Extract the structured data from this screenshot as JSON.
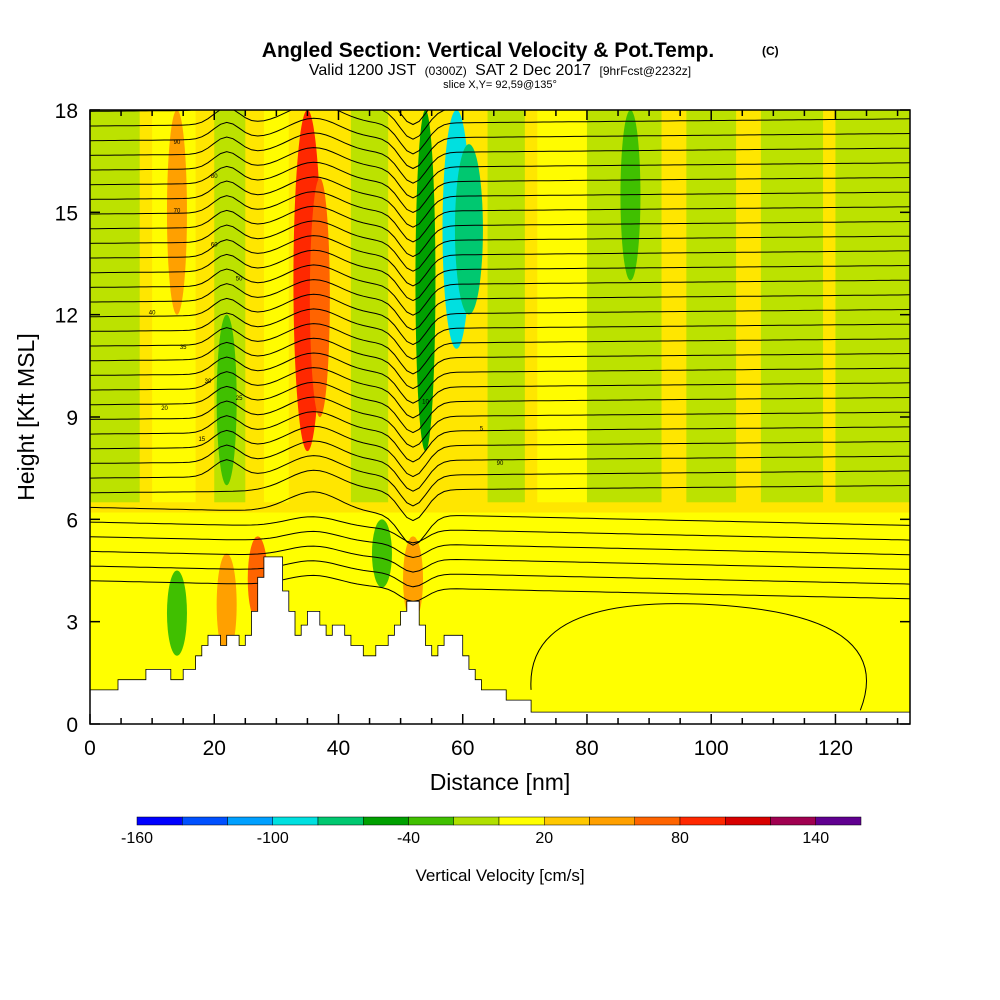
{
  "chart_data": {
    "type": "heatmap",
    "title": "Angled Section: Vertical Velocity & Pot.Temp.",
    "title_units": "(C)",
    "subtitle_parts": [
      "Valid 1200 JST",
      "(0300Z)",
      "SAT 2 Dec 2017",
      "[9hrFcst@2232z]"
    ],
    "slice_info": "slice X,Y= 92,59@135°",
    "xlabel": "Distance [nm]",
    "ylabel": "Height [Kft MSL]",
    "xlim": [
      0,
      132
    ],
    "ylim": [
      0,
      18
    ],
    "x_ticks": [
      0,
      20,
      40,
      60,
      80,
      100,
      120
    ],
    "y_ticks": [
      0,
      3,
      6,
      9,
      12,
      15,
      18
    ],
    "x_tick_labels": [
      "0",
      "20",
      "40",
      "60",
      "80",
      "100",
      "120"
    ],
    "y_tick_labels": [
      "0",
      "3",
      "6",
      "9",
      "12",
      "15",
      "18"
    ],
    "colorbar": {
      "label": "Vertical Velocity [cm/s]",
      "range": [
        -160,
        160
      ],
      "step": 20,
      "colors": [
        "#0000ff",
        "#0050ff",
        "#00a0ff",
        "#00e0e0",
        "#00c870",
        "#00a000",
        "#40c000",
        "#b0e000",
        "#ffff00",
        "#ffc800",
        "#ffa000",
        "#ff6400",
        "#ff2800",
        "#d80000",
        "#a00050",
        "#600090"
      ],
      "tick_labels": [
        "-160",
        "-100",
        "-40",
        "20",
        "80",
        "140"
      ]
    },
    "terrain": [
      [
        0,
        1.0
      ],
      [
        4.5,
        1.0
      ],
      [
        4.5,
        1.3
      ],
      [
        9,
        1.3
      ],
      [
        9,
        1.6
      ],
      [
        13,
        1.6
      ],
      [
        13,
        1.3
      ],
      [
        15,
        1.3
      ],
      [
        15,
        1.6
      ],
      [
        17,
        1.6
      ],
      [
        17,
        2.0
      ],
      [
        18,
        2.0
      ],
      [
        18,
        2.3
      ],
      [
        19,
        2.3
      ],
      [
        19,
        2.6
      ],
      [
        21,
        2.6
      ],
      [
        21,
        2.3
      ],
      [
        22,
        2.3
      ],
      [
        22,
        2.6
      ],
      [
        24,
        2.6
      ],
      [
        24,
        2.3
      ],
      [
        25,
        2.3
      ],
      [
        25,
        2.6
      ],
      [
        26,
        2.6
      ],
      [
        26,
        3.3
      ],
      [
        27,
        3.3
      ],
      [
        27,
        4.3
      ],
      [
        28,
        4.3
      ],
      [
        28,
        4.9
      ],
      [
        31,
        4.9
      ],
      [
        31,
        3.9
      ],
      [
        32,
        3.9
      ],
      [
        32,
        3.3
      ],
      [
        33,
        3.3
      ],
      [
        33,
        2.6
      ],
      [
        34,
        2.6
      ],
      [
        34,
        2.9
      ],
      [
        35,
        2.9
      ],
      [
        35,
        3.3
      ],
      [
        37,
        3.3
      ],
      [
        37,
        2.9
      ],
      [
        38,
        2.9
      ],
      [
        38,
        2.6
      ],
      [
        39,
        2.6
      ],
      [
        39,
        2.9
      ],
      [
        41,
        2.9
      ],
      [
        41,
        2.6
      ],
      [
        42,
        2.6
      ],
      [
        42,
        2.3
      ],
      [
        44,
        2.3
      ],
      [
        44,
        2.0
      ],
      [
        46,
        2.0
      ],
      [
        46,
        2.3
      ],
      [
        48,
        2.3
      ],
      [
        48,
        2.6
      ],
      [
        49,
        2.6
      ],
      [
        49,
        2.9
      ],
      [
        50,
        2.9
      ],
      [
        50,
        3.3
      ],
      [
        51,
        3.3
      ],
      [
        51,
        3.6
      ],
      [
        53,
        3.6
      ],
      [
        53,
        2.9
      ],
      [
        54,
        2.9
      ],
      [
        54,
        2.3
      ],
      [
        55,
        2.3
      ],
      [
        55,
        2.0
      ],
      [
        56,
        2.0
      ],
      [
        56,
        2.3
      ],
      [
        57,
        2.3
      ],
      [
        57,
        2.6
      ],
      [
        60,
        2.6
      ],
      [
        60,
        2.0
      ],
      [
        61,
        2.0
      ],
      [
        61,
        1.6
      ],
      [
        62,
        1.6
      ],
      [
        62,
        1.3
      ],
      [
        63,
        1.3
      ],
      [
        63,
        1.0
      ],
      [
        67,
        1.0
      ],
      [
        67,
        0.7
      ],
      [
        71,
        0.7
      ],
      [
        71,
        0.35
      ],
      [
        132,
        0.35
      ]
    ],
    "theta_isotherms_c": [
      -5,
      0,
      5,
      10,
      15,
      20,
      25,
      30,
      35,
      40,
      45,
      50,
      55,
      60,
      65,
      70,
      75,
      80,
      85,
      90
    ],
    "vertical_velocity_features": [
      {
        "x": 35,
        "z": [
          8,
          18
        ],
        "w": 80
      },
      {
        "x": 37,
        "z": [
          9,
          16
        ],
        "w": 60
      },
      {
        "x": 27,
        "z": [
          3,
          5.5
        ],
        "w": 60
      },
      {
        "x": 22,
        "z": [
          2,
          5
        ],
        "w": 50
      },
      {
        "x": 14,
        "z": [
          12,
          18
        ],
        "w": 40
      },
      {
        "x": 54,
        "z": [
          8,
          18
        ],
        "w": -50
      },
      {
        "x": 59,
        "z": [
          11,
          18
        ],
        "w": -90
      },
      {
        "x": 61,
        "z": [
          12,
          17
        ],
        "w": -70
      },
      {
        "x": 22,
        "z": [
          7,
          12
        ],
        "w": -40
      },
      {
        "x": 52,
        "z": [
          3,
          5.5
        ],
        "w": 50
      },
      {
        "x": 47,
        "z": [
          4,
          6
        ],
        "w": -40
      },
      {
        "x": 87,
        "z": [
          13,
          18
        ],
        "w": -40
      },
      {
        "x": 14,
        "z": [
          2,
          4.5
        ],
        "w": -40
      }
    ]
  },
  "iso_label_texts": [
    "90",
    "80",
    "70",
    "60",
    "50",
    "40",
    "35",
    "30",
    "25",
    "20",
    "15",
    "10",
    "5"
  ]
}
